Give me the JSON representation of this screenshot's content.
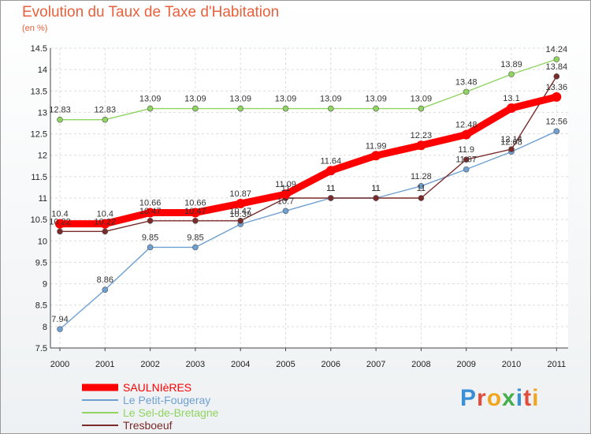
{
  "header": {
    "title": "Evolution du Taux de Taxe d'Habitation",
    "subtitle": "(en %)"
  },
  "logo": {
    "text": "Proxiti"
  },
  "chart_data": {
    "type": "line",
    "title": "Evolution du Taux de Taxe d'Habitation",
    "ylabel": "(en %)",
    "xlabel": "",
    "x": [
      2000,
      2001,
      2002,
      2003,
      2004,
      2005,
      2006,
      2007,
      2008,
      2009,
      2010,
      2011
    ],
    "ylim": [
      7.5,
      14.5
    ],
    "yticks": [
      7.5,
      8,
      8.5,
      9,
      9.5,
      10,
      10.5,
      11,
      11.5,
      12,
      12.5,
      13,
      13.5,
      14,
      14.5
    ],
    "grid": true,
    "legend_position": "bottom-left",
    "series": [
      {
        "name": "SAULNIèRES",
        "color": "#ff0000",
        "values": [
          10.4,
          10.4,
          10.66,
          10.66,
          10.87,
          11.09,
          11.64,
          11.99,
          12.23,
          12.48,
          13.1,
          13.36
        ],
        "labels": [
          "10.4",
          "10.4",
          "10.66",
          "10.66",
          "10.87",
          "11.09",
          "11.64",
          "11.99",
          "12.23",
          "12.48",
          "13.1",
          "13.36"
        ]
      },
      {
        "name": "Le Petit-Fougeray",
        "color": "#6fa0d2",
        "values": [
          7.94,
          8.86,
          9.85,
          9.85,
          10.39,
          10.7,
          11.0,
          11.0,
          11.28,
          11.67,
          12.08,
          12.56
        ],
        "labels": [
          "7.94",
          "8.86",
          "9.85",
          "9.85",
          "10.39",
          "10.7",
          "11",
          "11",
          "11.28",
          "11.67",
          "12.08",
          "12.56"
        ]
      },
      {
        "name": "Le Sel-de-Bretagne",
        "color": "#8fd460",
        "values": [
          12.83,
          12.83,
          13.09,
          13.09,
          13.09,
          13.09,
          13.09,
          13.09,
          13.09,
          13.48,
          13.89,
          14.24
        ],
        "labels": [
          "12.83",
          "12.83",
          "13.09",
          "13.09",
          "13.09",
          "13.09",
          "13.09",
          "13.09",
          "13.09",
          "13.48",
          "13.89",
          "14.24"
        ]
      },
      {
        "name": "Tresboeuf",
        "color": "#7a2a2a",
        "values": [
          10.22,
          10.22,
          10.47,
          10.47,
          10.47,
          11.0,
          11.0,
          11.0,
          11.0,
          11.9,
          12.14,
          13.84
        ],
        "labels": [
          "10.22",
          "10.22",
          "10.47",
          "10.47",
          "10.47",
          "11",
          "11",
          "11",
          "11",
          "11.9",
          "12.14",
          "13.84"
        ]
      }
    ]
  }
}
